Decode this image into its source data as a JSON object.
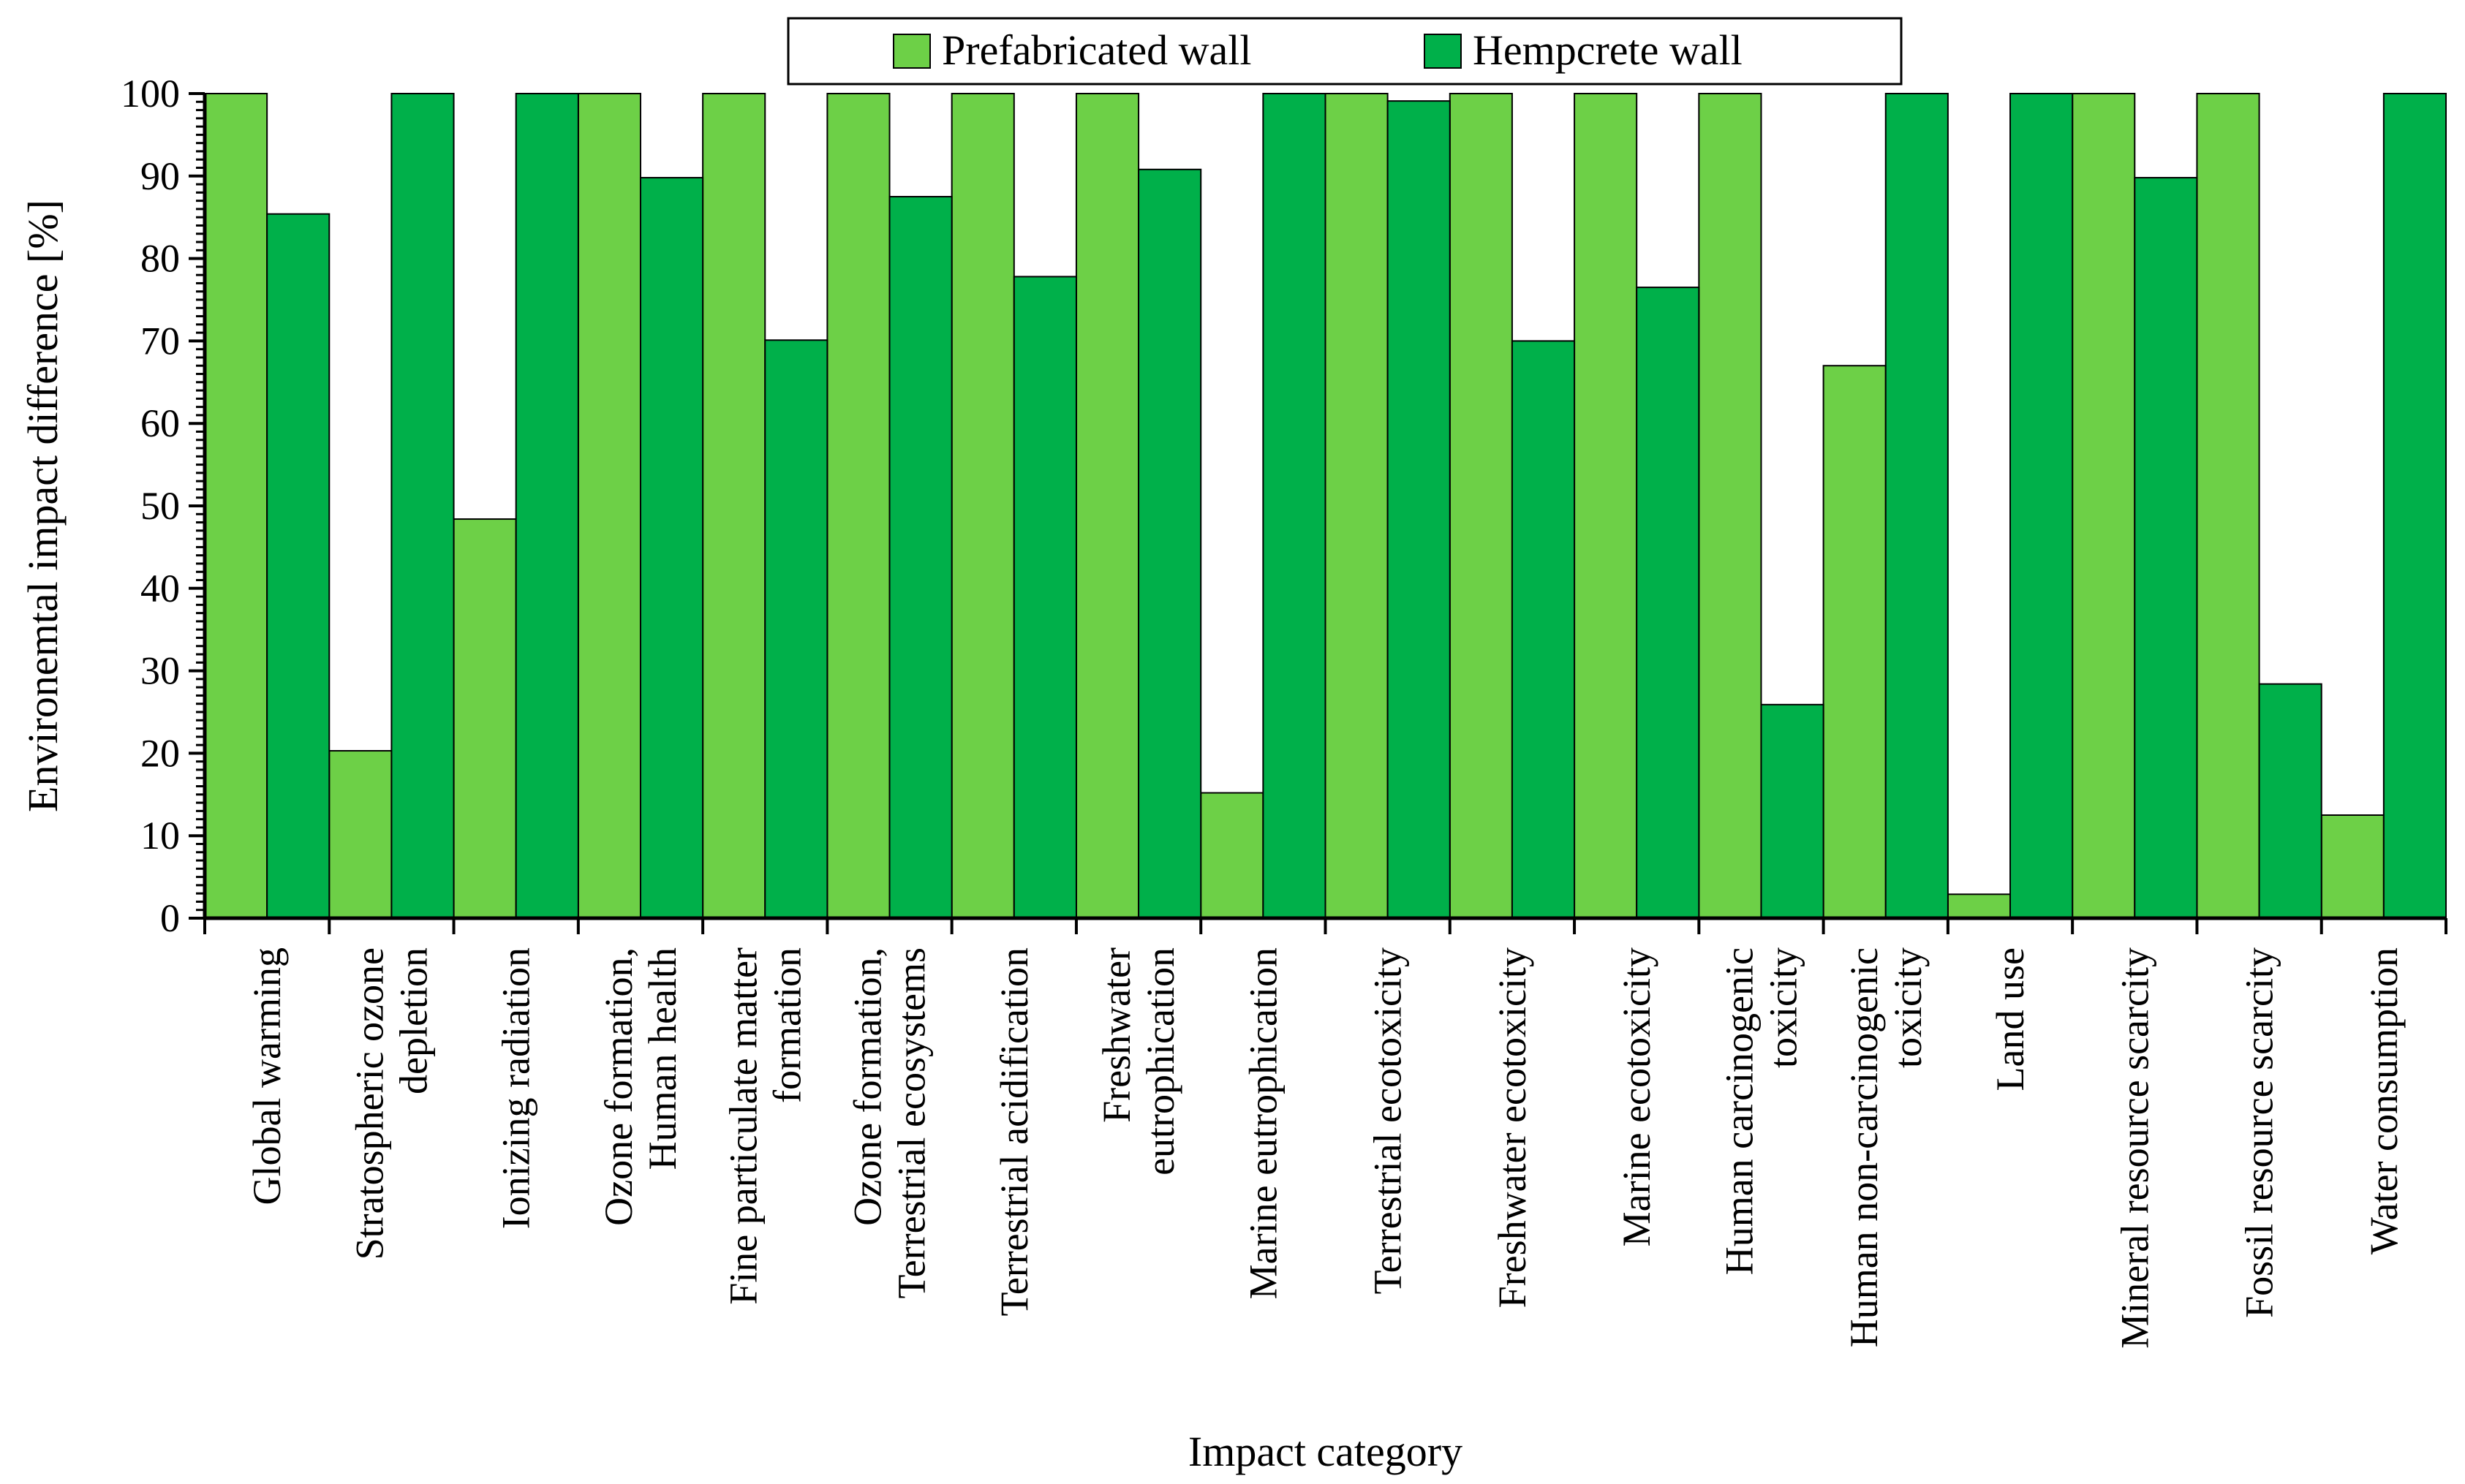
{
  "chart_data": {
    "type": "bar",
    "title": "",
    "xlabel": "Impact category",
    "ylabel": "Environemtal impact difference [%]",
    "ylim": [
      0,
      100
    ],
    "yticks": [
      0,
      10,
      20,
      30,
      40,
      50,
      60,
      70,
      80,
      90,
      100
    ],
    "ytick_labels": [
      "0",
      "10",
      "20",
      "30",
      "40",
      "50",
      "60",
      "70",
      "80",
      "90",
      "100"
    ],
    "legend_position": "top-center",
    "grid": false,
    "categories": [
      [
        "Global warming"
      ],
      [
        "Stratospheric ozone",
        "depletion"
      ],
      [
        "Ionizing radiation"
      ],
      [
        "Ozone formation,",
        "Human health"
      ],
      [
        "Fine particulate matter",
        "formation"
      ],
      [
        "Ozone formation,",
        "Terrestrial ecosystems"
      ],
      [
        "Terrestrial acidification"
      ],
      [
        "Freshwater",
        "eutrophication"
      ],
      [
        "Marine eutrophication"
      ],
      [
        "Terrestrial ecotoxicity"
      ],
      [
        "Freshwater ecotoxicity"
      ],
      [
        "Marine ecotoxicity"
      ],
      [
        "Human carcinogenic",
        "toxicity"
      ],
      [
        "Human non-carcinogenic",
        "toxicity"
      ],
      [
        "Land use"
      ],
      [
        "Mineral resource scarcity"
      ],
      [
        "Fossil resource scarcity"
      ],
      [
        "Water consumption"
      ]
    ],
    "series": [
      {
        "name": "Prefabricated wall",
        "color": "#6dd047",
        "values": [
          100,
          20.3,
          48.4,
          100,
          100,
          100,
          100,
          100,
          15.2,
          100,
          100,
          100,
          100,
          67,
          2.9,
          100,
          100,
          12.5
        ]
      },
      {
        "name": "Hempcrete wall",
        "color": "#00b04a",
        "values": [
          85.4,
          100,
          100,
          89.8,
          70.1,
          87.5,
          77.8,
          90.8,
          100,
          99.1,
          70,
          76.5,
          25.9,
          100,
          100,
          89.8,
          28.4,
          100
        ]
      }
    ]
  }
}
